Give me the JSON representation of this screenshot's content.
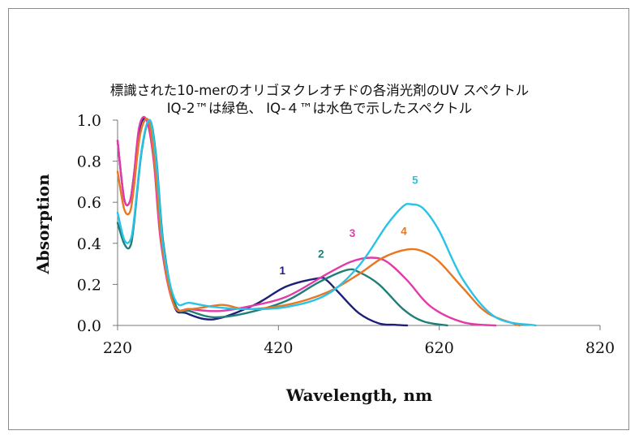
{
  "chart_data": {
    "type": "line",
    "title": "標識された10-merのオリゴヌクレオチドの各消光剤のUV スペクトル",
    "subtitle": "IQ-2™は緑色、 IQ-４™は水色で示したスペクトル",
    "xlabel": "Wavelength, nm",
    "ylabel": "Absorption",
    "xlim": [
      220,
      820
    ],
    "ylim": [
      0,
      1.0
    ],
    "xticks": [
      "220",
      "420",
      "620",
      "820"
    ],
    "yticks": [
      "0.0",
      "0.2",
      "0.4",
      "0.6",
      "0.8",
      "1.0"
    ],
    "grid": false,
    "series": [
      {
        "name": "1",
        "color": "#1f1f7a",
        "label_pos": [
          425,
          0.25
        ],
        "x": [
          220,
          228,
          235,
          240,
          248,
          258,
          266,
          275,
          290,
          305,
          340,
          390,
          430,
          470,
          480,
          495,
          520,
          545,
          565,
          580
        ],
        "y": [
          0.9,
          0.62,
          0.6,
          0.72,
          0.97,
          0.99,
          0.8,
          0.4,
          0.1,
          0.06,
          0.03,
          0.1,
          0.19,
          0.23,
          0.22,
          0.16,
          0.06,
          0.01,
          0.003,
          0
        ]
      },
      {
        "name": "2",
        "color": "#1f7f78",
        "label_pos": [
          473,
          0.33
        ],
        "x": [
          220,
          228,
          235,
          240,
          250,
          260,
          268,
          277,
          292,
          310,
          340,
          380,
          430,
          470,
          505,
          520,
          545,
          575,
          600,
          630
        ],
        "y": [
          0.5,
          0.4,
          0.38,
          0.48,
          0.85,
          1.0,
          0.82,
          0.4,
          0.1,
          0.07,
          0.04,
          0.06,
          0.12,
          0.21,
          0.27,
          0.26,
          0.2,
          0.08,
          0.02,
          0
        ]
      },
      {
        "name": "3",
        "color": "#e23aa9",
        "label_pos": [
          512,
          0.43
        ],
        "x": [
          220,
          228,
          235,
          240,
          247,
          256,
          265,
          274,
          290,
          310,
          345,
          380,
          430,
          480,
          510,
          535,
          555,
          580,
          610,
          650,
          690
        ],
        "y": [
          0.9,
          0.62,
          0.6,
          0.72,
          0.97,
          1.0,
          0.8,
          0.4,
          0.1,
          0.08,
          0.07,
          0.09,
          0.14,
          0.25,
          0.31,
          0.33,
          0.31,
          0.22,
          0.09,
          0.015,
          0
        ]
      },
      {
        "name": "4",
        "color": "#e87722",
        "label_pos": [
          576,
          0.44
        ],
        "x": [
          220,
          228,
          235,
          240,
          248,
          258,
          266,
          275,
          290,
          310,
          350,
          380,
          430,
          480,
          520,
          550,
          580,
          600,
          620,
          650,
          680,
          720
        ],
        "y": [
          0.75,
          0.57,
          0.55,
          0.66,
          0.93,
          1.0,
          0.8,
          0.4,
          0.1,
          0.08,
          0.1,
          0.08,
          0.1,
          0.16,
          0.25,
          0.33,
          0.37,
          0.36,
          0.31,
          0.18,
          0.06,
          0
        ]
      },
      {
        "name": "5",
        "color": "#29c3e8",
        "label_pos": [
          590,
          0.69
        ],
        "x": [
          220,
          228,
          235,
          240,
          250,
          260,
          268,
          277,
          292,
          310,
          340,
          380,
          430,
          480,
          520,
          555,
          575,
          585,
          600,
          620,
          650,
          690,
          740
        ],
        "y": [
          0.55,
          0.42,
          0.41,
          0.5,
          0.86,
          1.0,
          0.8,
          0.38,
          0.12,
          0.11,
          0.09,
          0.08,
          0.09,
          0.15,
          0.29,
          0.49,
          0.58,
          0.59,
          0.57,
          0.46,
          0.22,
          0.04,
          0
        ]
      }
    ]
  }
}
